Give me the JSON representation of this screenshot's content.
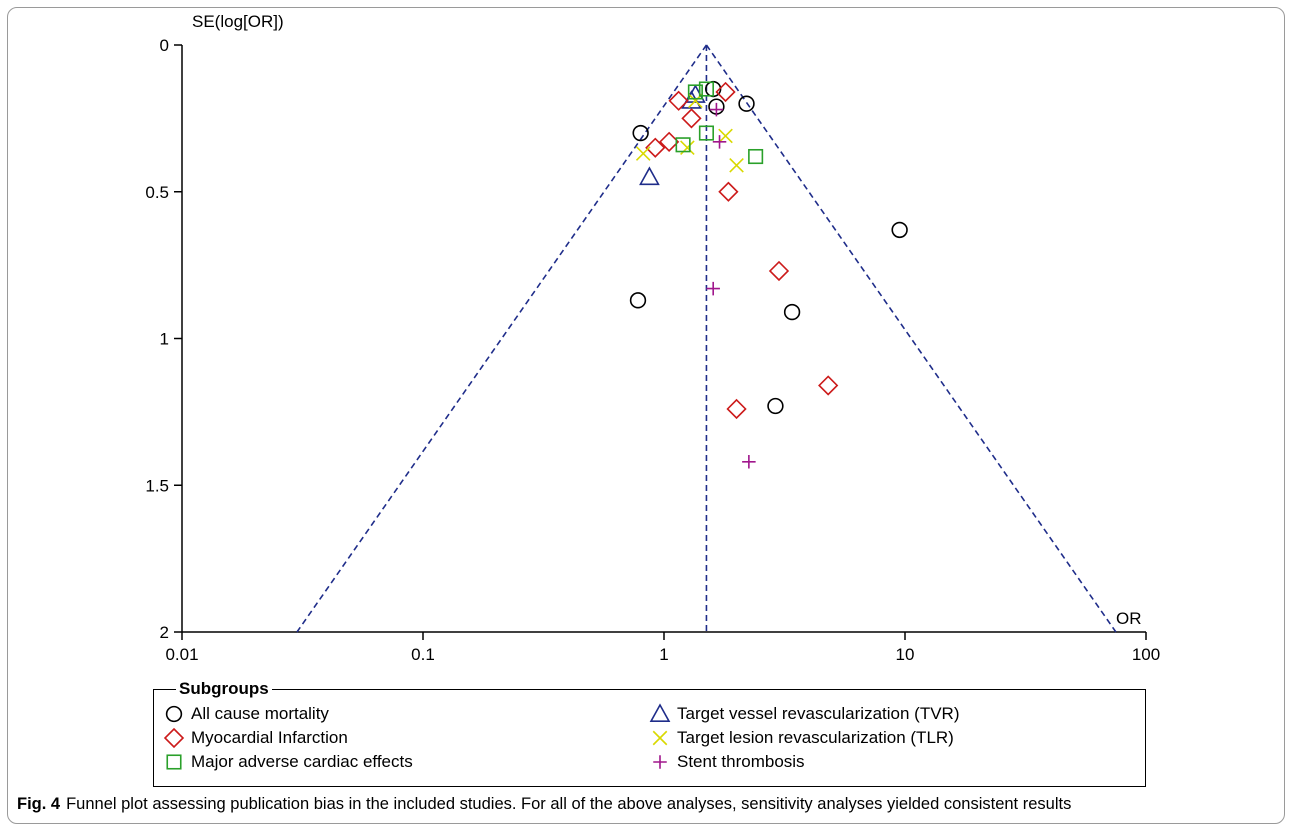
{
  "chart_data": {
    "type": "scatter",
    "subtype": "funnel",
    "title": "",
    "xlabel": "OR",
    "ylabel": "SE(log[OR])",
    "x_scale": "log",
    "xlim": [
      0.01,
      100
    ],
    "ylim": [
      0,
      2
    ],
    "y_inverted": true,
    "xticks": [
      {
        "value": 0.01,
        "label": "0.01"
      },
      {
        "value": 0.1,
        "label": "0.1"
      },
      {
        "value": 1,
        "label": "1"
      },
      {
        "value": 10,
        "label": "10"
      },
      {
        "value": 100,
        "label": "100"
      }
    ],
    "yticks": [
      {
        "value": 0,
        "label": "0"
      },
      {
        "value": 0.5,
        "label": "0.5"
      },
      {
        "value": 1,
        "label": "1"
      },
      {
        "value": 1.5,
        "label": "1.5"
      },
      {
        "value": 2,
        "label": "2"
      }
    ],
    "pooled_or": 1.5,
    "funnel_lines": {
      "apex": [
        1.5,
        0
      ],
      "left_base": [
        0.03,
        2
      ],
      "right_base": [
        75,
        2
      ],
      "style": "dashed",
      "color": "#1f2d8a"
    },
    "grid": false,
    "legend_position": "bottom",
    "series": [
      {
        "name": "All cause mortality",
        "marker": "circle",
        "color": "#000000",
        "points": [
          [
            1.6,
            0.15
          ],
          [
            1.65,
            0.21
          ],
          [
            2.2,
            0.2
          ],
          [
            0.8,
            0.3
          ],
          [
            9.5,
            0.63
          ],
          [
            0.78,
            0.87
          ],
          [
            3.4,
            0.91
          ],
          [
            2.9,
            1.23
          ]
        ]
      },
      {
        "name": "Target vessel revascularization (TVR)",
        "marker": "triangle",
        "color": "#1f2d8a",
        "points": [
          [
            1.35,
            0.17
          ],
          [
            1.3,
            0.19
          ],
          [
            0.87,
            0.45
          ]
        ]
      },
      {
        "name": "Myocardial Infarction",
        "marker": "diamond",
        "color": "#cc1a1a",
        "points": [
          [
            1.8,
            0.16
          ],
          [
            1.15,
            0.19
          ],
          [
            1.3,
            0.25
          ],
          [
            0.92,
            0.35
          ],
          [
            1.05,
            0.33
          ],
          [
            1.85,
            0.5
          ],
          [
            3.0,
            0.77
          ],
          [
            4.8,
            1.16
          ],
          [
            2.0,
            1.24
          ]
        ]
      },
      {
        "name": "Target lesion revascularization (TLR)",
        "marker": "x",
        "color": "#d9d900",
        "points": [
          [
            1.35,
            0.19
          ],
          [
            0.82,
            0.37
          ],
          [
            1.25,
            0.35
          ],
          [
            1.8,
            0.31
          ],
          [
            2.0,
            0.41
          ]
        ]
      },
      {
        "name": "Major adverse cardiac effects",
        "marker": "square",
        "color": "#2aa02a",
        "points": [
          [
            1.5,
            0.15
          ],
          [
            1.35,
            0.16
          ],
          [
            1.2,
            0.34
          ],
          [
            1.5,
            0.3
          ],
          [
            2.4,
            0.38
          ]
        ]
      },
      {
        "name": "Stent thrombosis",
        "marker": "plus",
        "color": "#a0168c",
        "points": [
          [
            1.65,
            0.22
          ],
          [
            1.7,
            0.33
          ],
          [
            1.6,
            0.83
          ],
          [
            2.25,
            1.42
          ]
        ]
      }
    ]
  },
  "legend": {
    "title": "Subgroups",
    "items": [
      {
        "label": "All cause mortality",
        "marker": "circle",
        "color": "#000000"
      },
      {
        "label": "Target vessel revascularization (TVR)",
        "marker": "triangle",
        "color": "#1f2d8a"
      },
      {
        "label": "Myocardial Infarction",
        "marker": "diamond",
        "color": "#cc1a1a"
      },
      {
        "label": "Target lesion revascularization (TLR)",
        "marker": "x",
        "color": "#d9d900"
      },
      {
        "label": "Major adverse cardiac effects",
        "marker": "square",
        "color": "#2aa02a"
      },
      {
        "label": "Stent thrombosis",
        "marker": "plus",
        "color": "#a0168c"
      }
    ]
  },
  "caption": {
    "label": "Fig. 4",
    "text": "Funnel plot assessing publication bias in the included studies. For all of the above analyses, sensitivity analyses yielded consistent results"
  }
}
